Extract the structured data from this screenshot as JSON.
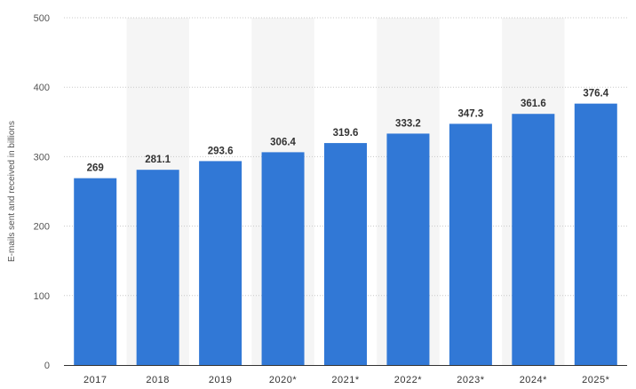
{
  "chart_data": {
    "type": "bar",
    "categories": [
      "2017",
      "2018",
      "2019",
      "2020*",
      "2021*",
      "2022*",
      "2023*",
      "2024*",
      "2025*"
    ],
    "values": [
      269,
      281.1,
      293.6,
      306.4,
      319.6,
      333.2,
      347.3,
      361.6,
      376.4
    ],
    "data_labels": [
      "269",
      "281.1",
      "293.6",
      "306.4",
      "319.6",
      "333.2",
      "347.3",
      "361.6",
      "376.4"
    ],
    "title": "",
    "xlabel": "",
    "ylabel": "E-mails sent and received in billions",
    "ylim": [
      0,
      500
    ],
    "yticks": [
      0,
      100,
      200,
      300,
      400,
      500
    ],
    "grid": true,
    "colors": {
      "bar": "#3178d6",
      "band": "#f5f5f5",
      "axis": "#333333"
    }
  }
}
